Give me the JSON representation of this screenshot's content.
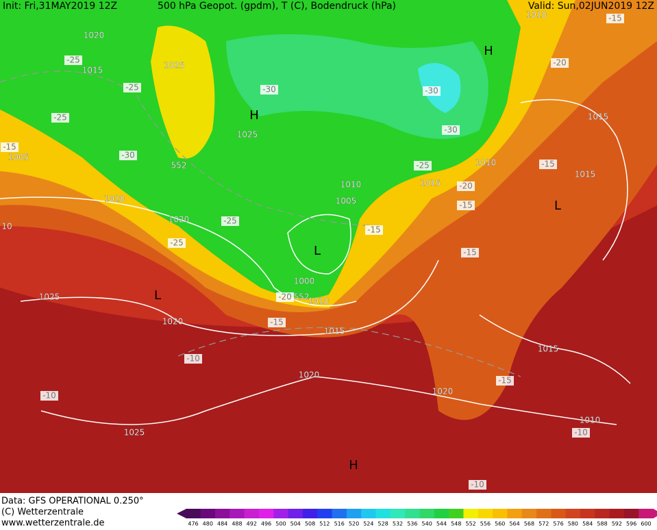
{
  "header": {
    "init": "Init: Fri,31MAY2019 12Z",
    "title": "500 hPa Geopot. (gpdm), T (C), Bodendruck (hPa)",
    "valid": "Valid: Sun,02JUN2019 12Z"
  },
  "map": {
    "labels": [
      1020,
      -25,
      1015,
      1025,
      -25,
      -30,
      "H",
      1025,
      -25,
      -15,
      1005,
      -30,
      552,
      1020,
      1020,
      -25,
      -25,
      10,
      1010,
      1005,
      -15,
      "L",
      1000,
      -20,
      552,
      1010,
      "L",
      1025,
      1020,
      -15,
      1015,
      -10,
      1020,
      -10,
      1025,
      "H",
      -10,
      "H",
      -30,
      -30,
      -25,
      1010,
      1015,
      -20,
      -15,
      1015,
      -15,
      1015,
      -20,
      "L",
      -15,
      1015,
      -15,
      1020,
      1010,
      -10,
      1010,
      -15
    ]
  },
  "footer": {
    "data": "Data: GFS OPERATIONAL 0.250°",
    "copyright": "(C) Wetterzentrale",
    "url": "www.wetterzentrale.de"
  },
  "legend": {
    "ticks": [
      476,
      480,
      484,
      488,
      492,
      496,
      500,
      504,
      508,
      512,
      516,
      520,
      524,
      528,
      532,
      536,
      540,
      544,
      548,
      552,
      556,
      560,
      564,
      568,
      572,
      576,
      580,
      584,
      588,
      592,
      596,
      600
    ],
    "colors": [
      "#4a0a5a",
      "#6a0a7a",
      "#8a109a",
      "#a818b8",
      "#c820d0",
      "#e020e8",
      "#a020e8",
      "#7020e8",
      "#4020e8",
      "#2040f0",
      "#2070f0",
      "#20a0f0",
      "#20c8f0",
      "#20e0e0",
      "#30e8b8",
      "#30e090",
      "#30d868",
      "#20d040",
      "#40d020",
      "#f0f000",
      "#f8d800",
      "#f8c000",
      "#f0a010",
      "#e88818",
      "#e07018",
      "#d85818",
      "#d04420",
      "#c83420",
      "#b82820",
      "#a81c20",
      "#981428",
      "#c81878"
    ]
  }
}
